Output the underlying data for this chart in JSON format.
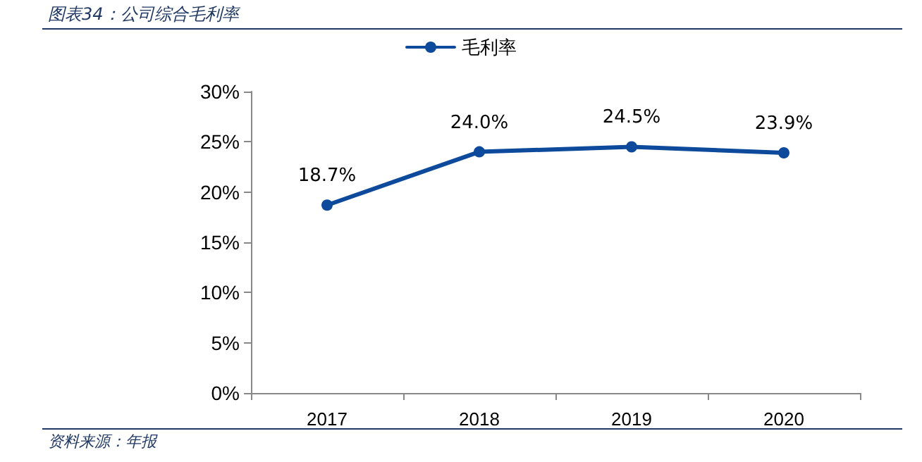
{
  "chart_data": {
    "type": "line",
    "title": "图表34：公司综合毛利率",
    "categories": [
      "2017",
      "2018",
      "2019",
      "2020"
    ],
    "series": [
      {
        "name": "毛利率",
        "color": "#0d4a9c",
        "values": [
          18.7,
          24.0,
          24.5,
          23.9
        ],
        "value_labels": [
          "18.7%",
          "24.0%",
          "24.5%",
          "23.9%"
        ]
      }
    ],
    "ylim": [
      0,
      30
    ],
    "yticks": [
      {
        "value": 0,
        "label": "0%"
      },
      {
        "value": 5,
        "label": "5%"
      },
      {
        "value": 10,
        "label": "10%"
      },
      {
        "value": 15,
        "label": "15%"
      },
      {
        "value": 20,
        "label": "20%"
      },
      {
        "value": 25,
        "label": "25%"
      },
      {
        "value": 30,
        "label": "30%"
      }
    ],
    "grid": false,
    "legend": "top",
    "marker": "circle",
    "line_style": "solid",
    "annotations": [
      "资料来源：年报"
    ]
  }
}
